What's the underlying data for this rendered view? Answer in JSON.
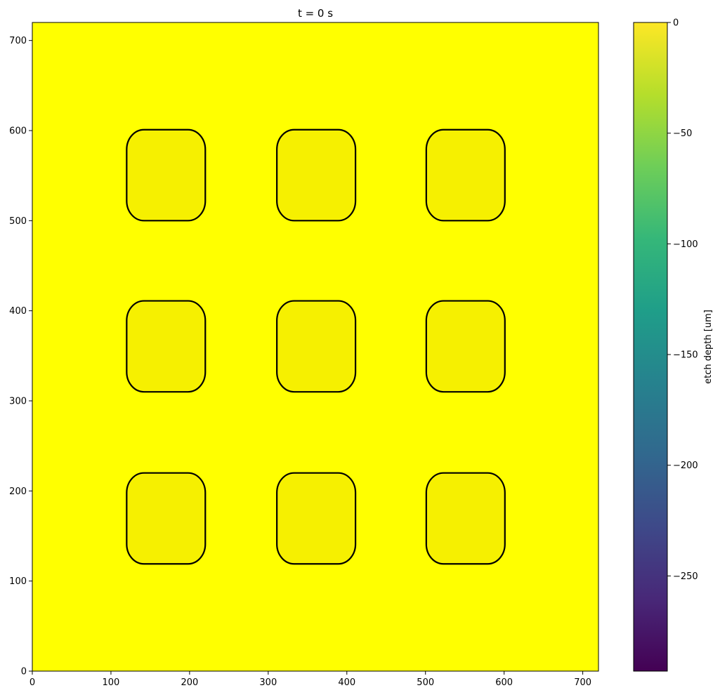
{
  "chart_data": {
    "type": "heatmap",
    "title": "t = 0 s",
    "xlabel": "",
    "ylabel": "",
    "xlim": [
      0,
      720
    ],
    "ylim": [
      0,
      720
    ],
    "x_ticks": [
      0,
      100,
      200,
      300,
      400,
      500,
      600,
      700
    ],
    "y_ticks": [
      0,
      100,
      200,
      300,
      400,
      500,
      600,
      700
    ],
    "background_value": 0,
    "field_color": "#ffff00",
    "pocket_fill_color": "#f6f000",
    "outline_color": "#000000",
    "pockets": [
      {
        "x0": 120,
        "x1": 220,
        "y0": 500,
        "y1": 601,
        "corner_radius": 22
      },
      {
        "x0": 311,
        "x1": 411,
        "y0": 500,
        "y1": 601,
        "corner_radius": 22
      },
      {
        "x0": 501,
        "x1": 601,
        "y0": 500,
        "y1": 601,
        "corner_radius": 22
      },
      {
        "x0": 120,
        "x1": 220,
        "y0": 310,
        "y1": 411,
        "corner_radius": 22
      },
      {
        "x0": 311,
        "x1": 411,
        "y0": 310,
        "y1": 411,
        "corner_radius": 22
      },
      {
        "x0": 501,
        "x1": 601,
        "y0": 310,
        "y1": 411,
        "corner_radius": 22
      },
      {
        "x0": 120,
        "x1": 220,
        "y0": 119,
        "y1": 220,
        "corner_radius": 22
      },
      {
        "x0": 311,
        "x1": 411,
        "y0": 119,
        "y1": 220,
        "corner_radius": 22
      },
      {
        "x0": 501,
        "x1": 601,
        "y0": 119,
        "y1": 220,
        "corner_radius": 22
      }
    ],
    "colorbar": {
      "label": "etch depth [um]",
      "min": -293,
      "max": 0,
      "ticks": [
        0,
        -50,
        -100,
        -150,
        -200,
        -250
      ],
      "tick_labels": [
        "0",
        "−50",
        "−100",
        "−150",
        "−200",
        "−250"
      ],
      "colormap": "viridis",
      "colormap_stops": [
        "#440154",
        "#482878",
        "#3e4989",
        "#31688e",
        "#26828e",
        "#1f9e89",
        "#35b779",
        "#6ece58",
        "#b5de2b",
        "#fde725"
      ]
    }
  }
}
